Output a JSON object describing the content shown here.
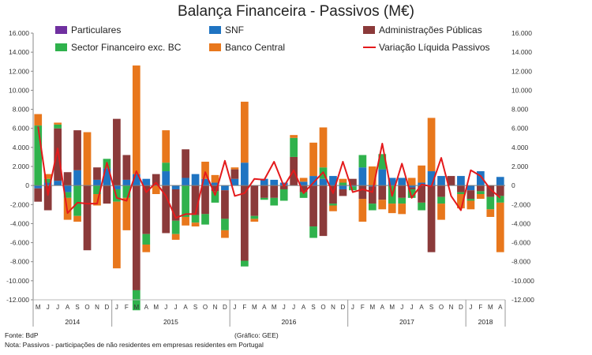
{
  "chart_data": {
    "type": "bar",
    "title": "Balança Financeira - Passivos (M€)",
    "stacked": true,
    "ylim": [
      -12000,
      16000
    ],
    "y_ticks": [
      -12000,
      -10000,
      -8000,
      -6000,
      -4000,
      -2000,
      0,
      2000,
      4000,
      6000,
      8000,
      10000,
      12000,
      14000,
      16000
    ],
    "y_tick_labels_left": [
      "-12.000",
      "-10.000",
      "-8.000",
      "-6.000",
      "-4.000",
      "-2.000",
      "0",
      "2.000",
      "4.000",
      "6.000",
      "8.000",
      "10.000",
      "12.000",
      "14.000",
      "16.000"
    ],
    "y_tick_labels_right": [
      "-12.000",
      "-10.000",
      "-8.000",
      "-6.000",
      "-4.000",
      "-2.000",
      "0",
      "2.000",
      "4.000",
      "6.000",
      "8.000",
      "10.000",
      "12.000",
      "14.000",
      "16.000"
    ],
    "grid": false,
    "legend_position": "top",
    "categories": [
      "M",
      "J",
      "J",
      "A",
      "S",
      "O",
      "N",
      "D",
      "J",
      "F",
      "M",
      "A",
      "M",
      "J",
      "J",
      "A",
      "S",
      "O",
      "N",
      "D",
      "J",
      "F",
      "M",
      "A",
      "M",
      "J",
      "J",
      "A",
      "S",
      "O",
      "N",
      "D",
      "J",
      "F",
      "M",
      "A",
      "M",
      "J",
      "J",
      "A",
      "S",
      "O",
      "N",
      "D",
      "J",
      "F",
      "M",
      "A"
    ],
    "year_groups": [
      {
        "label": "2014",
        "start": 0,
        "count": 8
      },
      {
        "label": "2015",
        "start": 8,
        "count": 12
      },
      {
        "label": "2016",
        "start": 20,
        "count": 12
      },
      {
        "label": "2017",
        "start": 32,
        "count": 12
      },
      {
        "label": "2018",
        "start": 44,
        "count": 4
      }
    ],
    "series": [
      {
        "name": "Particulares",
        "kind": "bar",
        "color": "#7030A0",
        "values": [
          0,
          0,
          0,
          0,
          0,
          0,
          0,
          0,
          0,
          0,
          0,
          0,
          0,
          0,
          0,
          0,
          0,
          0,
          0,
          0,
          0,
          0,
          0,
          0,
          0,
          0,
          0,
          0,
          0,
          0,
          0,
          0,
          0,
          0,
          0,
          0,
          0,
          0,
          0,
          0,
          0,
          0,
          0,
          0,
          0,
          0,
          0,
          0
        ]
      },
      {
        "name": "SNF",
        "kind": "bar",
        "color": "#1F74C2",
        "values": [
          -300,
          300,
          500,
          -700,
          1600,
          0,
          600,
          1800,
          -400,
          600,
          1200,
          700,
          0,
          1500,
          -400,
          800,
          1200,
          700,
          300,
          -500,
          700,
          2400,
          0,
          700,
          600,
          300,
          0,
          400,
          1000,
          700,
          1000,
          -400,
          -100,
          1900,
          -100,
          1700,
          800,
          800,
          -200,
          300,
          1500,
          1000,
          0,
          1000,
          -500,
          1500,
          0,
          900
        ],
        "values_note": "negative entries are the SNF segment drawn below zero"
      },
      {
        "name": "Administrações Públicas",
        "kind": "bar",
        "color": "#8B3A3A",
        "values": [
          -1400,
          -2600,
          5500,
          1400,
          4200,
          -6800,
          1300,
          -1900,
          7000,
          2600,
          -11000,
          -5100,
          1200,
          -5000,
          -3300,
          3000,
          -3100,
          -3000,
          -600,
          -3000,
          1000,
          -7900,
          -3200,
          -1300,
          -1300,
          -400,
          3000,
          -700,
          -4300,
          -5300,
          -1900,
          -700,
          700,
          -1400,
          -1800,
          -1500,
          0,
          -1300,
          -200,
          -1800,
          -7000,
          -1200,
          1000,
          -700,
          -900,
          -600,
          -1200,
          -1100
        ],
        "values_note": "Administrações Públicas segment; dominant driver of net position"
      },
      {
        "name": "Sector Financeiro exc. BC",
        "kind": "bar",
        "color": "#2FB24C",
        "values": [
          6300,
          400,
          400,
          -600,
          -3200,
          0,
          -900,
          1000,
          -1300,
          -1300,
          -2100,
          -1100,
          0,
          900,
          -1400,
          -3300,
          -800,
          -1100,
          -1200,
          -1200,
          0,
          -600,
          -300,
          -200,
          -800,
          -1200,
          2000,
          -600,
          -1200,
          1200,
          -200,
          300,
          -400,
          1300,
          -700,
          1600,
          -1900,
          -600,
          -900,
          -800,
          0,
          -700,
          0,
          -200,
          -200,
          -300,
          -1300,
          -700
        ]
      },
      {
        "name": "Banco Central",
        "kind": "bar",
        "color": "#E8771C",
        "values": [
          1200,
          500,
          200,
          -2300,
          -600,
          5600,
          -1200,
          0,
          -7000,
          -3400,
          11400,
          -800,
          -900,
          3400,
          -600,
          -900,
          -400,
          1800,
          800,
          -800,
          200,
          6400,
          -300,
          0,
          0,
          0,
          300,
          400,
          3500,
          4200,
          -600,
          400,
          0,
          -2400,
          2000,
          -1000,
          -1000,
          -1100,
          800,
          1800,
          5600,
          -1700,
          0,
          -1500,
          -900,
          -500,
          -800,
          -5200
        ]
      },
      {
        "name": "Variação Líquida Passivos",
        "kind": "line",
        "color": "#E41A1C",
        "values": [
          6200,
          -1000,
          3900,
          -2900,
          -1800,
          -1900,
          -1900,
          2400,
          -1300,
          -1600,
          1500,
          -700,
          300,
          -1100,
          -3400,
          -3000,
          -3000,
          1400,
          -1000,
          2600,
          -1100,
          -800,
          700,
          600,
          2500,
          -100,
          1600,
          -800,
          300,
          1400,
          -800,
          2500,
          -700,
          -400,
          -700,
          4400,
          -1100,
          2300,
          -1300,
          100,
          -100,
          2900,
          -1100,
          -2600,
          1600,
          1000,
          -400,
          -1300
        ]
      }
    ],
    "source_note": "Fonte: BdP",
    "credit_note": "(Gráfico: GEE)",
    "footnote": "Nota: Passivos - participações de não residentes em empresas residentes em Portugal"
  }
}
